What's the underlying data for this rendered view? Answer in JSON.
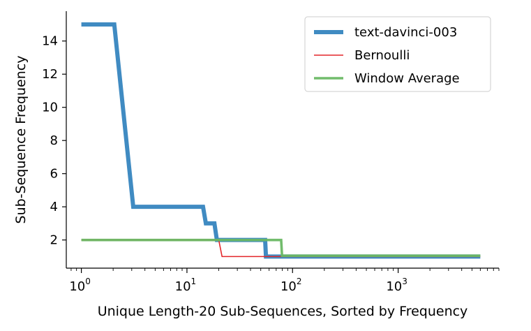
{
  "chart_data": {
    "type": "line",
    "xlabel": "Unique Length-20 Sub-Sequences, Sorted by Frequency",
    "ylabel": "Sub-Sequence Frequency",
    "xscale": "log",
    "xlim": [
      0.72,
      9000
    ],
    "ylim": [
      0.3,
      15.8
    ],
    "grid": false,
    "legend_position": "top-right",
    "x_ticks": [
      {
        "base": "10",
        "exp": "0"
      },
      {
        "base": "10",
        "exp": "1"
      },
      {
        "base": "10",
        "exp": "2"
      },
      {
        "base": "10",
        "exp": "3"
      }
    ],
    "y_ticks": [
      "2",
      "4",
      "6",
      "8",
      "10",
      "12",
      "14"
    ],
    "series": [
      {
        "name": "text-davinci-003",
        "color": "#3a87c0",
        "x": [
          1,
          2.05,
          3.1,
          14.2,
          15.1,
          18.2,
          19.2,
          55,
          56,
          6000
        ],
        "y": [
          15,
          15,
          4,
          4,
          3,
          3,
          2,
          2,
          1,
          1
        ]
      },
      {
        "name": "Bernoulli",
        "color": "#e3262a",
        "x": [
          1,
          20,
          21.5,
          6000
        ],
        "y": [
          2,
          2,
          1,
          1
        ]
      },
      {
        "name": "Window Average",
        "color": "#6ab864",
        "x": [
          1,
          78,
          79.5,
          6000
        ],
        "y": [
          2,
          2,
          1.05,
          1.05
        ]
      }
    ]
  }
}
